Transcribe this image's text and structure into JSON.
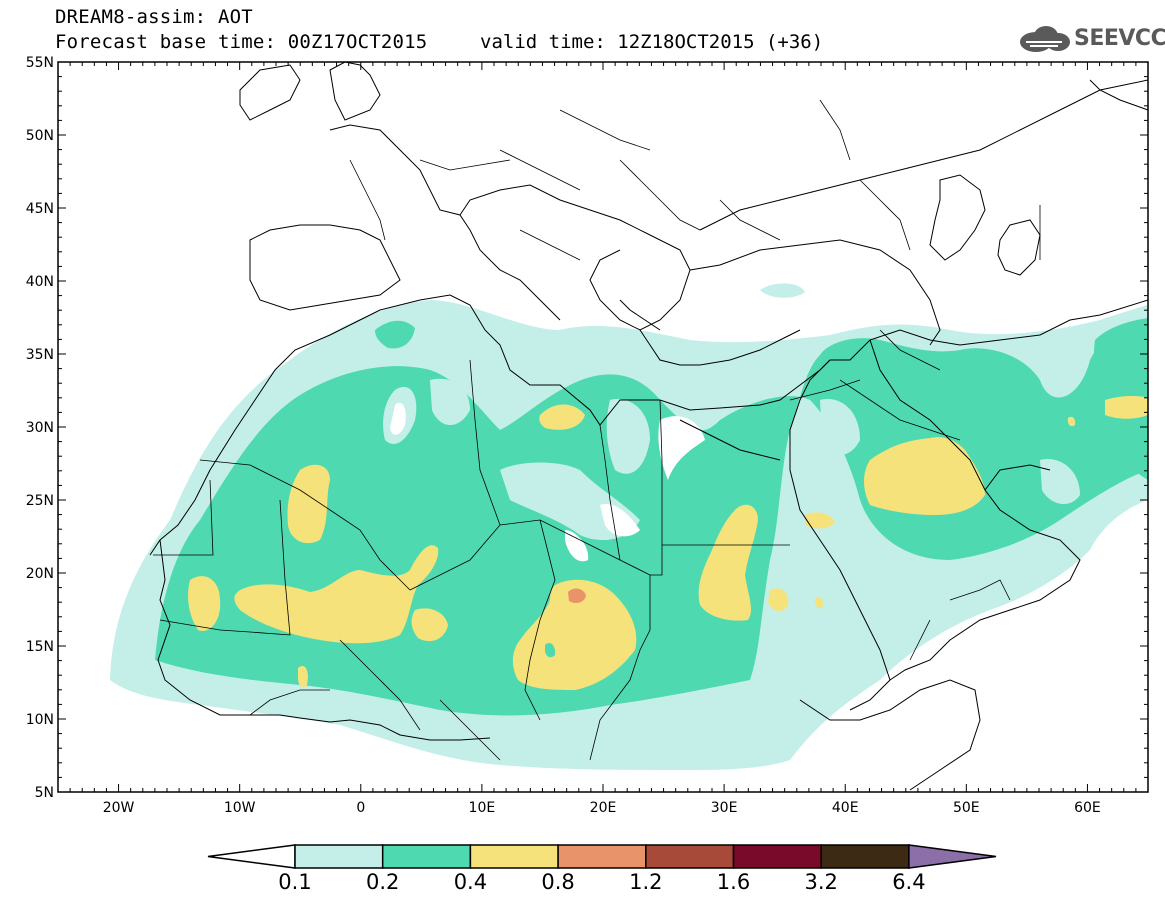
{
  "title": {
    "line1": "DREAM8-assim: AOT",
    "line2": "Forecast base time: 00Z17OCT2015",
    "valid": "valid time: 12Z18OCT2015 (+36)"
  },
  "logo": {
    "text": "SEEVCCC",
    "icon": "cloud-logo-icon"
  },
  "axes": {
    "lon_range": [
      -25,
      65
    ],
    "lat_range": [
      5,
      55
    ],
    "lat_labels": [
      "55N",
      "50N",
      "45N",
      "40N",
      "35N",
      "30N",
      "25N",
      "20N",
      "15N",
      "10N",
      "5N"
    ],
    "lon_labels": [
      "20W",
      "10W",
      "0",
      "10E",
      "20E",
      "30E",
      "40E",
      "50E",
      "60E"
    ]
  },
  "colorbar": {
    "labels": [
      "0.1",
      "0.2",
      "0.4",
      "0.8",
      "1.2",
      "1.6",
      "3.2",
      "6.4"
    ],
    "colors": [
      "#ffffff",
      "#c4efe9",
      "#4fd9b0",
      "#f5e27a",
      "#e8936a",
      "#a84a3a",
      "#7a0a2a",
      "#3d2a14",
      "#8c6fa8"
    ]
  },
  "colors": {
    "aot_01_02": "#c4efe9",
    "aot_02_04": "#4fd9b0",
    "aot_04_08": "#f5e27a",
    "aot_08_12": "#e8936a"
  }
}
